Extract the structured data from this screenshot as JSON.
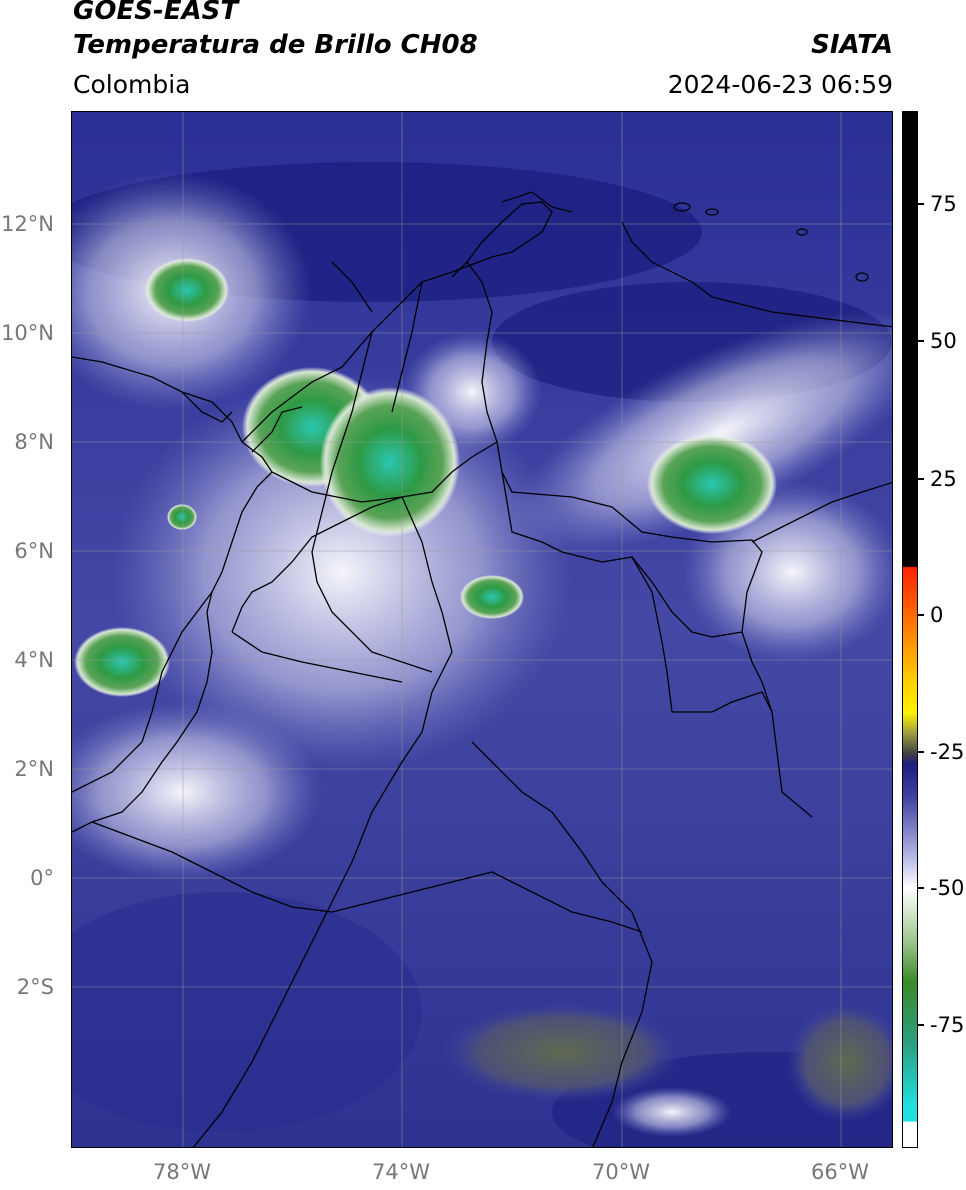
{
  "header": {
    "title_line1": "GOES-EAST",
    "title_line2": "Temperatura de Brillo CH08",
    "region": "Colombia",
    "source": "SIATA",
    "datetime": "2024-06-23 06:59"
  },
  "map": {
    "lat_labels": [
      "12°N",
      "10°N",
      "8°N",
      "6°N",
      "4°N",
      "2°N",
      "0°",
      "2°S"
    ],
    "lon_labels": [
      "78°W",
      "74°W",
      "70°W",
      "66°W"
    ],
    "gridlines": true
  },
  "colorbar": {
    "tick_labels": [
      "75",
      "50",
      "25",
      "0",
      "-25",
      "-50",
      "-75"
    ],
    "colors": {
      "cold_cloud": "#2e8b3a",
      "cyan_cloud": "#2bc6b0",
      "high_cloud": "#ffffff",
      "mid_level": "#3b3fa0",
      "dry_air": "#1c1f80",
      "warm_boundary": "#ff2200",
      "hot": "#000000"
    }
  }
}
